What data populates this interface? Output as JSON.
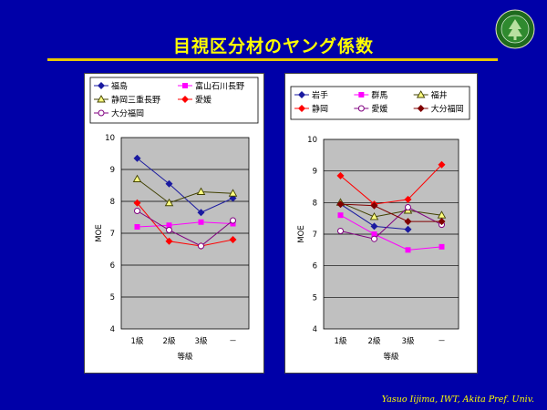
{
  "slide": {
    "title": "目視区分材のヤング係数",
    "footer": "Yasuo Iijima, IWT, Akita Pref.  Univ.",
    "title_color": "#ffff00",
    "background": "#0000a8",
    "logo_icon": "university-seal-icon"
  },
  "chart_data": [
    {
      "type": "line",
      "categories": [
        "1級",
        "2級",
        "3級",
        "－"
      ],
      "xlabel": "等級",
      "ylabel": "MOE",
      "ylim": [
        4,
        10
      ],
      "yticks": [
        "4",
        "5",
        "6",
        "7",
        "8",
        "9",
        "10"
      ],
      "grid": true,
      "legend": "top",
      "series": [
        {
          "name": "福島",
          "values": [
            9.35,
            8.55,
            7.65,
            8.1
          ],
          "color": "#1a1aa0",
          "marker": "diamond"
        },
        {
          "name": "富山石川長野",
          "values": [
            7.2,
            7.25,
            7.35,
            7.3
          ],
          "color": "#ff00ff",
          "marker": "square"
        },
        {
          "name": "静岡三重長野",
          "values": [
            8.7,
            7.95,
            8.3,
            8.25
          ],
          "color": "#404000",
          "marker": "triangle"
        },
        {
          "name": "愛媛",
          "values": [
            7.95,
            6.75,
            6.6,
            6.8
          ],
          "color": "#ff0000",
          "marker": "diamond"
        },
        {
          "name": "大分福岡",
          "values": [
            7.7,
            7.1,
            6.6,
            7.4
          ],
          "color": "#800080",
          "marker": "circle"
        }
      ]
    },
    {
      "type": "line",
      "categories": [
        "1級",
        "2級",
        "3級",
        "－"
      ],
      "xlabel": "等級",
      "ylabel": "MOE",
      "ylim": [
        4,
        10
      ],
      "yticks": [
        "4",
        "5",
        "6",
        "7",
        "8",
        "9",
        "10"
      ],
      "grid": true,
      "legend": "top",
      "series": [
        {
          "name": "岩手",
          "values": [
            7.95,
            7.25,
            7.15,
            null
          ],
          "color": "#1a1aa0",
          "marker": "diamond"
        },
        {
          "name": "群馬",
          "values": [
            7.6,
            7.0,
            6.5,
            6.6
          ],
          "color": "#ff00ff",
          "marker": "square"
        },
        {
          "name": "福井",
          "values": [
            8.0,
            7.55,
            7.75,
            7.6
          ],
          "color": "#404000",
          "marker": "triangle"
        },
        {
          "name": "静岡",
          "values": [
            8.85,
            7.95,
            8.1,
            9.2
          ],
          "color": "#ff0000",
          "marker": "diamond"
        },
        {
          "name": "愛媛",
          "values": [
            7.1,
            6.85,
            7.85,
            7.3
          ],
          "color": "#800080",
          "marker": "circle"
        },
        {
          "name": "大分福岡",
          "values": [
            7.95,
            7.9,
            7.4,
            7.4
          ],
          "color": "#800000",
          "marker": "diamond"
        }
      ]
    }
  ]
}
